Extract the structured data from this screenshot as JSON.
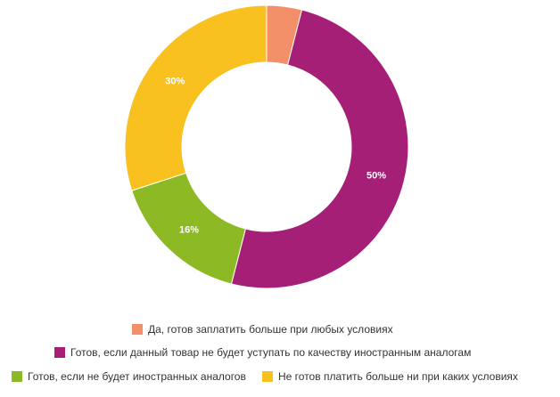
{
  "chart_data": {
    "type": "pie",
    "variant": "donut",
    "title": "",
    "categories": [
      "Да, готов заплатить больше при любых условиях",
      "Готов, если данный товар не будет уступать по качеству иностранным аналогам",
      "Готов, если не будет иностранных аналогов",
      "Не готов платить больше ни при каких условиях"
    ],
    "values": [
      4,
      50,
      16,
      30
    ],
    "labels": [
      "",
      "50%",
      "16%",
      "30%"
    ],
    "colors": [
      "#F28F68",
      "#A51F77",
      "#8CB924",
      "#F8C120"
    ],
    "legend_position": "bottom"
  }
}
